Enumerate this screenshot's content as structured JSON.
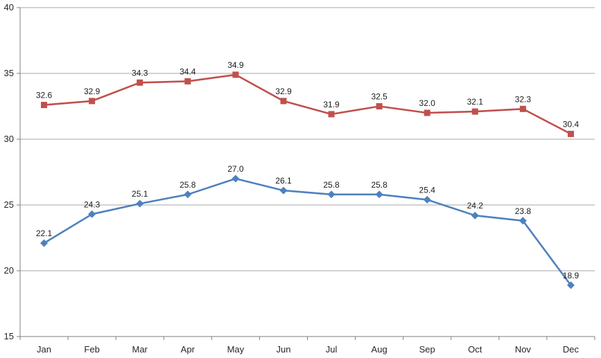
{
  "chart_data": {
    "type": "line",
    "title": "",
    "categories": [
      "Jan",
      "Feb",
      "Mar",
      "Apr",
      "May",
      "Jun",
      "Jul",
      "Aug",
      "Sep",
      "Oct",
      "Nov",
      "Dec"
    ],
    "series": [
      {
        "name": "upper-series",
        "marker": "square",
        "color": "#C0504D",
        "values": [
          32.6,
          32.9,
          34.3,
          34.4,
          34.9,
          32.9,
          31.9,
          32.5,
          32.0,
          32.1,
          32.3,
          30.4
        ],
        "labels": [
          "32.6",
          "32.9",
          "34.3",
          "34.4",
          "34.9",
          "32.9",
          "31.9",
          "32.5",
          "32.0",
          "32.1",
          "32.3",
          "30.4"
        ]
      },
      {
        "name": "lower-series",
        "marker": "diamond",
        "color": "#4F81BD",
        "values": [
          22.1,
          24.3,
          25.1,
          25.8,
          27.0,
          26.1,
          25.8,
          25.8,
          25.4,
          24.2,
          23.8,
          18.9
        ],
        "labels": [
          "22.1",
          "24.3",
          "25.1",
          "25.8",
          "27.0",
          "26.1",
          "25.8",
          "25.8",
          "25.4",
          "24.2",
          "23.8",
          "18.9"
        ]
      }
    ],
    "xlabel": "",
    "ylabel": "",
    "ylim": [
      15,
      40
    ],
    "yticks": [
      15,
      20,
      25,
      30,
      35,
      40
    ],
    "ytick_labels": [
      "15",
      "20",
      "25",
      "30",
      "35",
      "40"
    ],
    "grid": true,
    "legend": "none",
    "data_labels": true,
    "colors": {
      "background": "#FFFFFF",
      "gridline": "#A6A6A6",
      "axis": "#7F7F7F",
      "tick_label_text": "#262626",
      "data_label_text": "#1A1A1A"
    }
  }
}
